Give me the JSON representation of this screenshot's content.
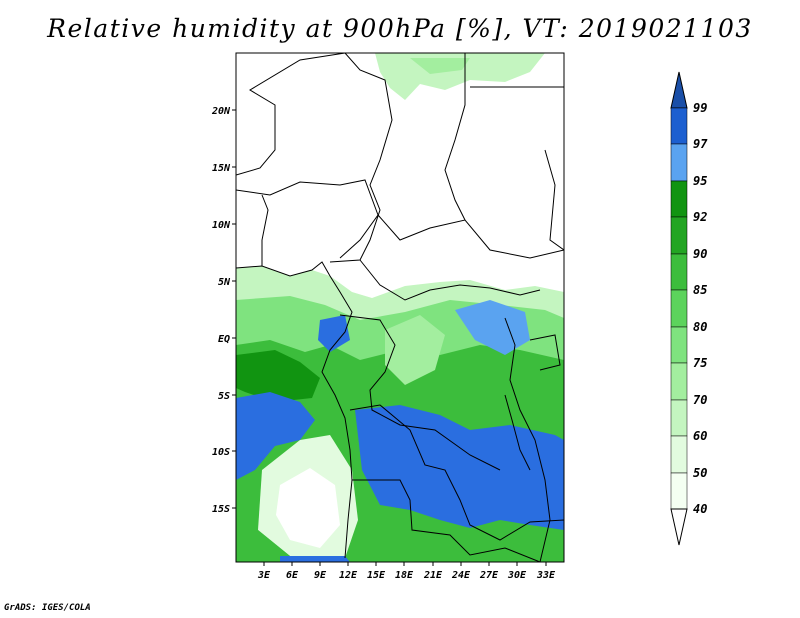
{
  "title": "Relative humidity at 900hPa [%], VT: 2019021103",
  "credit": "GrADS: IGES/COLA",
  "map": {
    "lat_labels": [
      "20N",
      "15N",
      "10N",
      "5N",
      "EQ",
      "5S",
      "10S",
      "15S"
    ],
    "lon_labels": [
      "3E",
      "6E",
      "9E",
      "12E",
      "15E",
      "18E",
      "21E",
      "24E",
      "27E",
      "30E",
      "33E"
    ]
  },
  "colorbar": {
    "labels": [
      "99",
      "97",
      "95",
      "92",
      "90",
      "85",
      "80",
      "75",
      "70",
      "60",
      "50",
      "40"
    ],
    "colors": [
      "#1c5fd0",
      "#2a6ee0",
      "#5aa3f0",
      "#119411",
      "#23a523",
      "#3cbd3c",
      "#5cd35c",
      "#7fe37f",
      "#a3ee9f",
      "#c4f5c0",
      "#e2fbdf",
      "#f4fff2"
    ],
    "top_arrow_color": "#1a4fa8",
    "bottom_arrow_color": "#ffffff"
  }
}
